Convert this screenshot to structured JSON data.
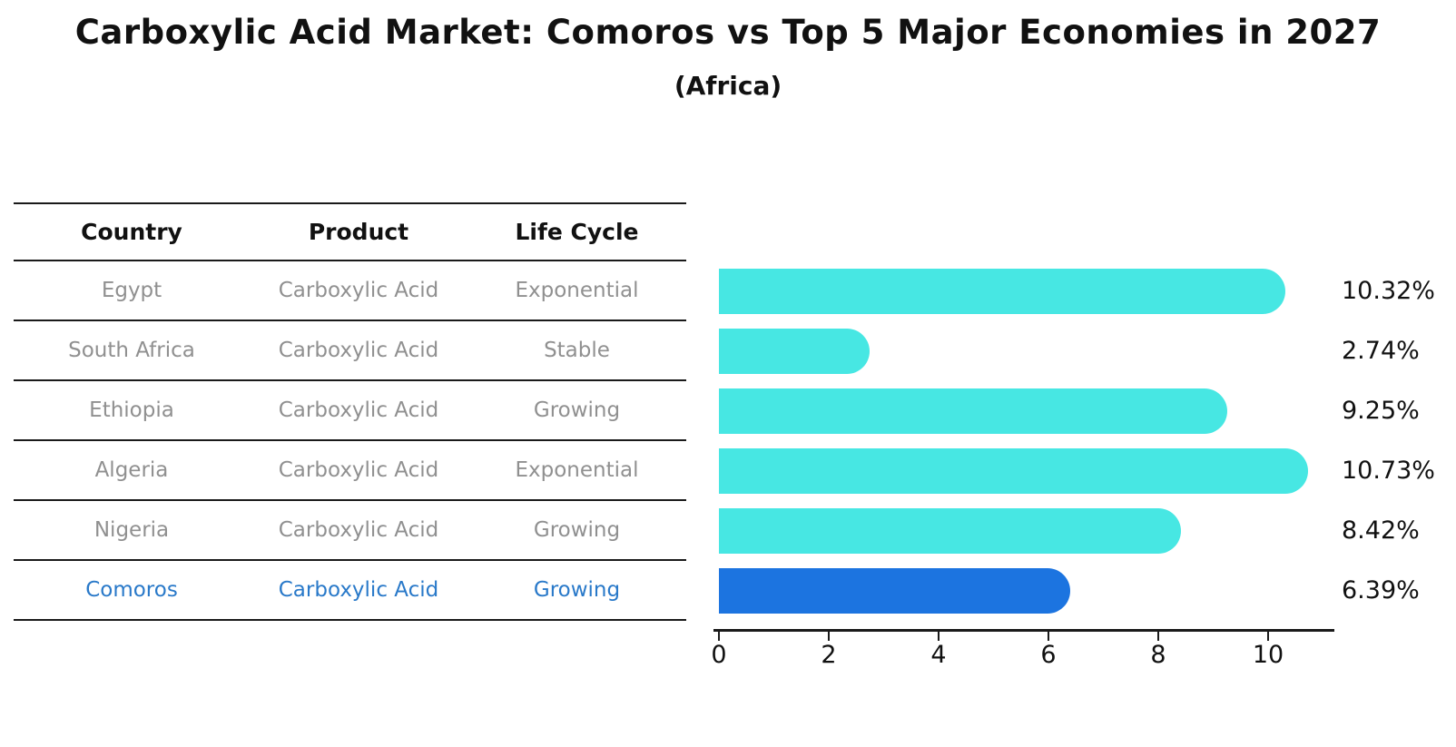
{
  "title": "Carboxylic Acid Market: Comoros vs Top 5 Major Economies in 2027",
  "subtitle": "(Africa)",
  "table": {
    "headers": [
      "Country",
      "Product",
      "Life Cycle"
    ],
    "rows": [
      {
        "country": "Egypt",
        "product": "Carboxylic Acid",
        "life_cycle": "Exponential",
        "highlight": false
      },
      {
        "country": "South Africa",
        "product": "Carboxylic Acid",
        "life_cycle": "Stable",
        "highlight": false
      },
      {
        "country": "Ethiopia",
        "product": "Carboxylic Acid",
        "life_cycle": "Growing",
        "highlight": false
      },
      {
        "country": "Algeria",
        "product": "Carboxylic Acid",
        "life_cycle": "Exponential",
        "highlight": false
      },
      {
        "country": "Nigeria",
        "product": "Carboxylic Acid",
        "life_cycle": "Growing",
        "highlight": false
      },
      {
        "country": "Comoros",
        "product": "Carboxylic Acid",
        "life_cycle": "Growing",
        "highlight": true
      }
    ]
  },
  "chart_data": {
    "type": "bar",
    "orientation": "horizontal",
    "title": "Carboxylic Acid Market: Comoros vs Top 5 Major Economies in 2027 (Africa)",
    "categories": [
      "Egypt",
      "South Africa",
      "Ethiopia",
      "Algeria",
      "Nigeria",
      "Comoros"
    ],
    "values": [
      10.32,
      2.74,
      9.25,
      10.73,
      8.42,
      6.39
    ],
    "value_labels": [
      "10.32%",
      "2.74%",
      "9.25%",
      "10.73%",
      "8.42%",
      "6.39%"
    ],
    "unit": "percent",
    "xticks": [
      0,
      2,
      4,
      6,
      8,
      10
    ],
    "xlim": [
      0,
      11.2
    ],
    "grid": false,
    "legend": null,
    "highlight_index": 5,
    "xlabel": "",
    "ylabel": ""
  },
  "colors": {
    "bar": "#47E7E3",
    "highlight_bar": "#1C74E0",
    "highlight_text": "#2979C9",
    "cell_text": "#909090",
    "header_text": "#111111",
    "value_text": "#111111",
    "line": "#1a1a1a"
  }
}
